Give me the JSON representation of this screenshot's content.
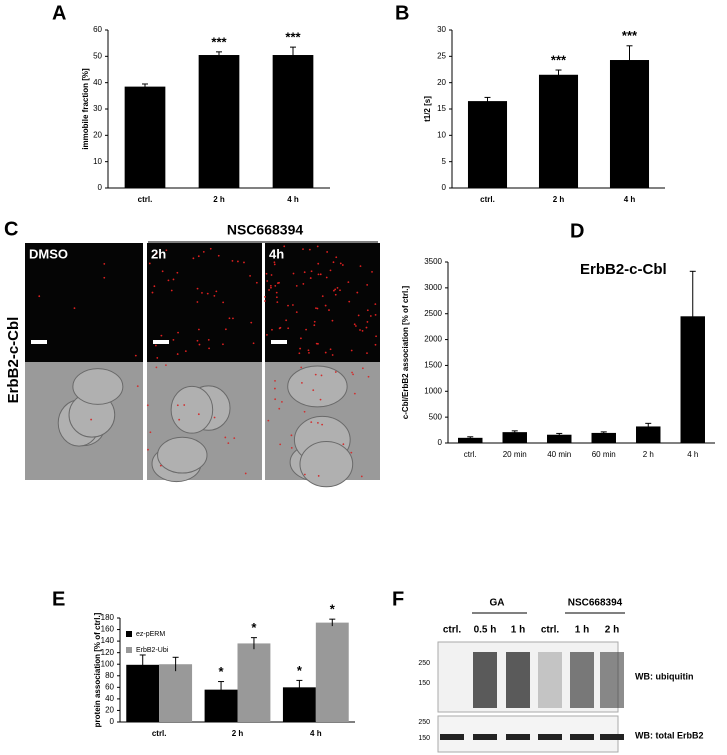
{
  "chart_data": [
    {
      "type": "bar",
      "label": "A",
      "ylabel": "immobile fraction [%]",
      "categories": [
        "ctrl.",
        "2 h",
        "4 h"
      ],
      "values": [
        38.5,
        50.5,
        50.5
      ],
      "errors": [
        1,
        1.2,
        3
      ],
      "color": "#000000",
      "ylim": [
        0,
        60
      ],
      "yticks": [
        0,
        10,
        20,
        30,
        40,
        50,
        60
      ],
      "annotations": [
        {
          "x": "2 h",
          "text": "***"
        },
        {
          "x": "4 h",
          "text": "***"
        }
      ]
    },
    {
      "type": "bar",
      "label": "B",
      "ylabel": "t1/2 [s]",
      "categories": [
        "ctrl.",
        "2 h",
        "4 h"
      ],
      "values": [
        16.5,
        21.5,
        24.3
      ],
      "errors": [
        0.7,
        0.9,
        2.7
      ],
      "color": "#000000",
      "ylim": [
        0,
        30
      ],
      "yticks": [
        0,
        5,
        10,
        15,
        20,
        25,
        30
      ],
      "annotations": [
        {
          "x": "2 h",
          "text": "***"
        },
        {
          "x": "4 h",
          "text": "***"
        }
      ]
    },
    {
      "type": "bar",
      "label": "D",
      "title": "ErbB2-c-Cbl",
      "ylabel": "c-Cbl/ErbB2 association [% of ctrl.]",
      "categories": [
        "ctrl.",
        "20 min",
        "40 min",
        "60 min",
        "2 h",
        "4 h"
      ],
      "values": [
        100,
        210,
        160,
        195,
        320,
        2450
      ],
      "errors": [
        20,
        25,
        25,
        20,
        60,
        870
      ],
      "color": "#000000",
      "ylim": [
        0,
        3500
      ],
      "yticks": [
        0,
        500,
        1000,
        1500,
        2000,
        2500,
        3000,
        3500
      ]
    },
    {
      "type": "bar",
      "label": "E",
      "ylabel": "protein association [% of ctrl.]",
      "categories": [
        "ctrl.",
        "2 h",
        "4 h"
      ],
      "series": [
        {
          "name": "ez-pERM",
          "color": "#000000",
          "values": [
            99,
            56,
            60
          ],
          "errors": [
            17,
            14,
            12
          ]
        },
        {
          "name": "ErbB2-Ubi",
          "color": "#999999",
          "values": [
            100,
            136,
            172
          ],
          "errors": [
            12,
            10,
            6
          ]
        }
      ],
      "legend": "top-left",
      "ylim": [
        0,
        180
      ],
      "yticks": [
        0,
        20,
        40,
        60,
        80,
        100,
        120,
        140,
        160,
        180
      ],
      "annotations": [
        {
          "series": "ez-pERM",
          "x": "2 h",
          "text": "*"
        },
        {
          "series": "ez-pERM",
          "x": "4 h",
          "text": "*"
        },
        {
          "series": "ErbB2-Ubi",
          "x": "2 h",
          "text": "*"
        },
        {
          "series": "ErbB2-Ubi",
          "x": "4 h",
          "text": "*"
        }
      ]
    }
  ],
  "panel_c": {
    "label": "C",
    "treatment": "NSC668394",
    "images": [
      "DMSO",
      "2h",
      "4h"
    ],
    "ylabel": "ErbB2-c-Cbl"
  },
  "panel_f": {
    "label": "F",
    "groups": [
      "GA",
      "NSC668394"
    ],
    "lanes": [
      "ctrl.",
      "0.5 h",
      "1 h",
      "ctrl.",
      "1 h",
      "2 h"
    ],
    "markers_top": [
      250,
      150
    ],
    "markers_bottom": [
      250,
      150
    ],
    "blots": [
      "WB: ubiquitin",
      "WB: total ErbB2"
    ]
  }
}
